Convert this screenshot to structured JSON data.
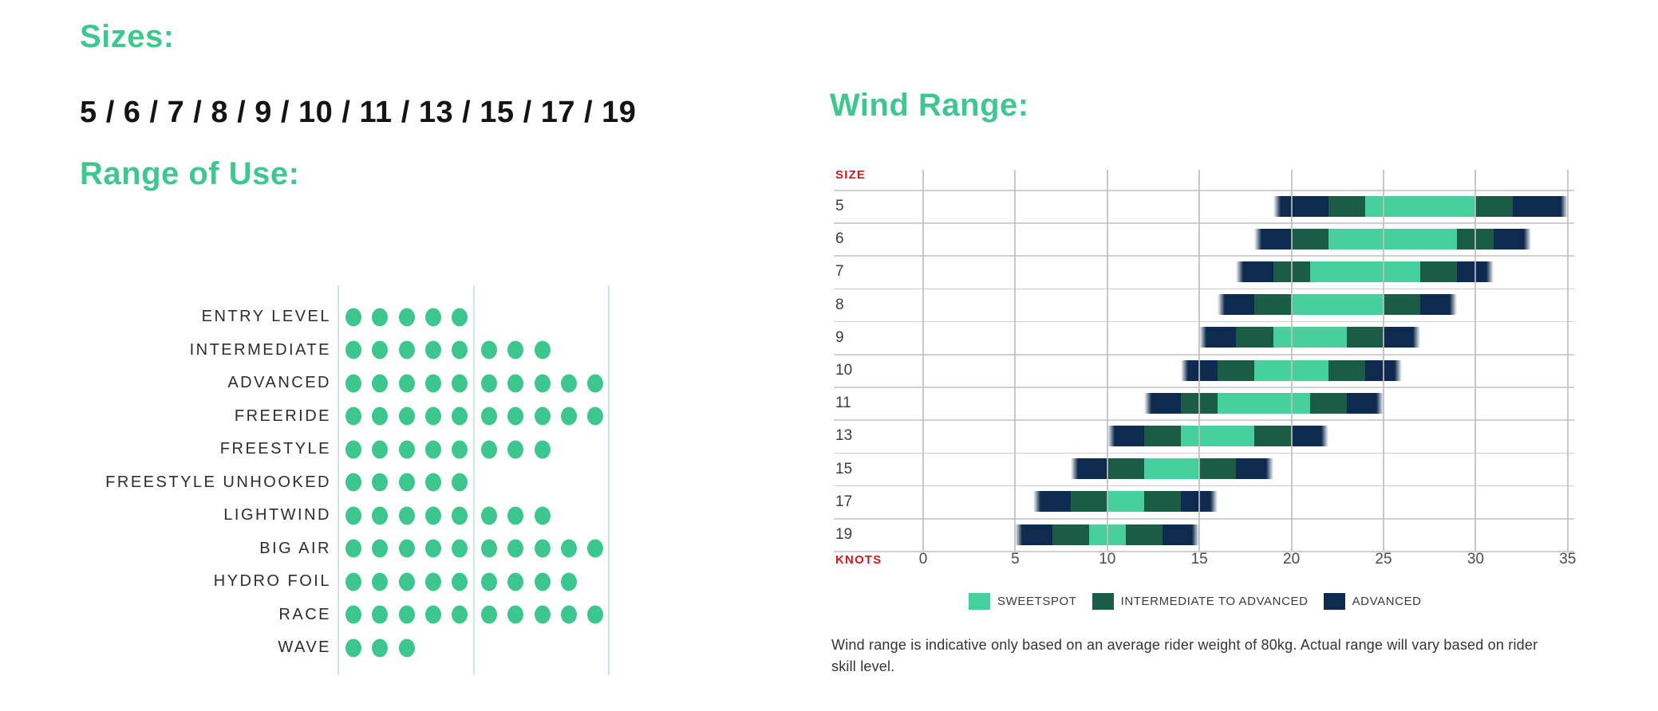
{
  "colors": {
    "background": "#ffffff",
    "heading_green": "#3ec78f",
    "dot_green": "#3ec68f",
    "axis_red": "#d11a1c",
    "grid_grey": "rgba(190,190,190,0.85)",
    "separator_grey": "#cfcfcf",
    "pale_green_gridline": "#c6e9da",
    "text_dark": "#141414",
    "row_label_grey": "#3c3c3c",
    "tick_grey": "#4b4b4b",
    "note_grey": "#333333",
    "dot_label_dark": "#2d2d2d"
  },
  "level_colors": {
    "SWEETSPOT": "#47cf9e",
    "INTERMEDIATE TO ADVANCED": "#1a5c46",
    "ADVANCED": "#0e2a4e"
  },
  "sizes_section": {
    "heading": "Sizes:",
    "values": "5 / 6 / 7 / 8 / 9 / 10 / 11 / 13 / 15 / 17 / 19"
  },
  "range_section": {
    "heading": "Range of Use:"
  },
  "wind_section": {
    "heading": "Wind Range:",
    "size_label": "SIZE",
    "knots_label": "KNOTS",
    "legend": [
      {
        "label": "SWEETSPOT",
        "color": "#47cf9e"
      },
      {
        "label": "INTERMEDIATE TO ADVANCED",
        "color": "#1a5c46"
      },
      {
        "label": "ADVANCED",
        "color": "#0e2a4e"
      }
    ],
    "note": "Wind range is indicative only based on an average rider weight of 80kg. Actual range will vary based on rider skill level."
  },
  "chart_data": [
    {
      "type": "bar",
      "render_style": "dot_matrix",
      "title": "Range of Use",
      "max_value": 10,
      "categories": [
        "ENTRY LEVEL",
        "INTERMEDIATE",
        "ADVANCED",
        "FREERIDE",
        "FREESTYLE",
        "FREESTYLE UNHOOKED",
        "LIGHTWIND",
        "BIG AIR",
        "HYDRO FOIL",
        "RACE",
        "WAVE"
      ],
      "values": [
        5,
        8,
        10,
        10,
        8,
        5,
        8,
        10,
        9,
        10,
        3
      ]
    },
    {
      "type": "bar",
      "render_style": "horizontal_stacked_range",
      "title": "Wind Range",
      "xlabel": "KNOTS",
      "ylabel": "SIZE",
      "xlim": [
        0,
        35
      ],
      "xticks": [
        0,
        5,
        10,
        15,
        20,
        25,
        30,
        35
      ],
      "grid": true,
      "legend_position": "bottom",
      "level_sequence": [
        "ADVANCED",
        "INTERMEDIATE TO ADVANCED",
        "SWEETSPOT",
        "INTERMEDIATE TO ADVANCED",
        "ADVANCED"
      ],
      "rows": [
        {
          "size": "5",
          "knot_bounds": [
            19,
            22,
            24,
            30,
            32,
            35
          ]
        },
        {
          "size": "6",
          "knot_bounds": [
            18,
            20,
            22,
            29,
            31,
            33
          ]
        },
        {
          "size": "7",
          "knot_bounds": [
            17,
            19,
            21,
            27,
            29,
            31
          ]
        },
        {
          "size": "8",
          "knot_bounds": [
            16,
            18,
            20,
            25,
            27,
            29
          ]
        },
        {
          "size": "9",
          "knot_bounds": [
            15,
            17,
            19,
            23,
            25,
            27
          ]
        },
        {
          "size": "10",
          "knot_bounds": [
            14,
            16,
            18,
            22,
            24,
            26
          ]
        },
        {
          "size": "11",
          "knot_bounds": [
            12,
            14,
            16,
            21,
            23,
            25
          ]
        },
        {
          "size": "13",
          "knot_bounds": [
            10,
            12,
            14,
            18,
            20,
            22
          ]
        },
        {
          "size": "15",
          "knot_bounds": [
            8,
            10,
            12,
            15,
            17,
            19
          ]
        },
        {
          "size": "17",
          "knot_bounds": [
            6,
            8,
            10,
            12,
            14,
            16
          ]
        },
        {
          "size": "19",
          "knot_bounds": [
            5,
            7,
            9,
            11,
            13,
            15
          ]
        }
      ]
    }
  ]
}
